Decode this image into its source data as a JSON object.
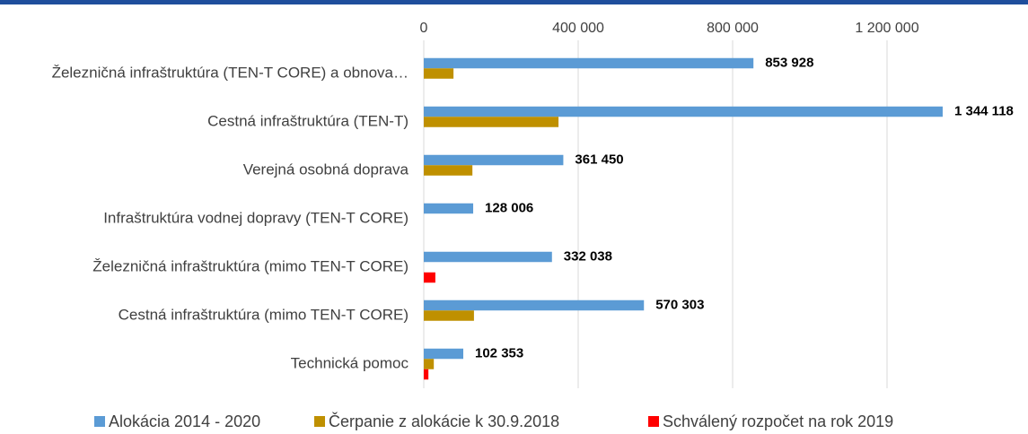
{
  "chart_data": {
    "type": "hbar",
    "categories": [
      "Železničná infraštruktúra (TEN-T CORE) a obnova…",
      "Cestná infraštruktúra (TEN-T)",
      "Verejná osobná doprava",
      "Infraštruktúra vodnej dopravy (TEN-T CORE)",
      "Železničná infraštruktúra (mimo TEN-T CORE)",
      "Cestná infraštruktúra (mimo TEN-T CORE)",
      "Technická pomoc"
    ],
    "series": [
      {
        "name": "Alokácia 2014 - 2020",
        "color": "#5b9bd5",
        "values": [
          853928,
          1344118,
          361450,
          128006,
          332038,
          570303,
          102353
        ],
        "value_labels": [
          "853 928",
          "1 344 118",
          "361 450",
          "128 006",
          "332 038",
          "570 303",
          "102 353"
        ]
      },
      {
        "name": "Čerpanie z alokácie k 30.9.2018",
        "color": "#bf9000",
        "values": [
          77000,
          349000,
          126000,
          null,
          null,
          130000,
          26000
        ]
      },
      {
        "name": "Schválený rozpočet na rok 2019",
        "color": "#ff0000",
        "values": [
          null,
          null,
          null,
          null,
          30000,
          null,
          12000
        ]
      }
    ],
    "xlim": [
      0,
      1400000
    ],
    "xticks": [
      0,
      {
        "value": 400000,
        "label": "400 000"
      },
      {
        "value": 800000,
        "label": "800 000"
      },
      {
        "value": 1200000,
        "label": "1 200 000"
      }
    ],
    "grid": true,
    "legend": "bottom"
  }
}
